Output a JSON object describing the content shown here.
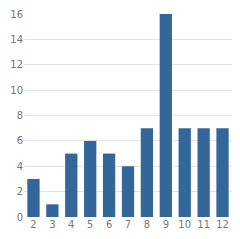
{
  "chart_data": {
    "type": "bar",
    "categories": [
      "2",
      "3",
      "4",
      "5",
      "6",
      "7",
      "8",
      "9",
      "10",
      "11",
      "12"
    ],
    "values": [
      3,
      1,
      5,
      6,
      5,
      4,
      7,
      16,
      7,
      7,
      7
    ],
    "color": "#336699",
    "ylim": [
      0,
      16
    ],
    "yticks": [
      0,
      2,
      4,
      6,
      8,
      10,
      12,
      14,
      16
    ],
    "grid": true
  }
}
